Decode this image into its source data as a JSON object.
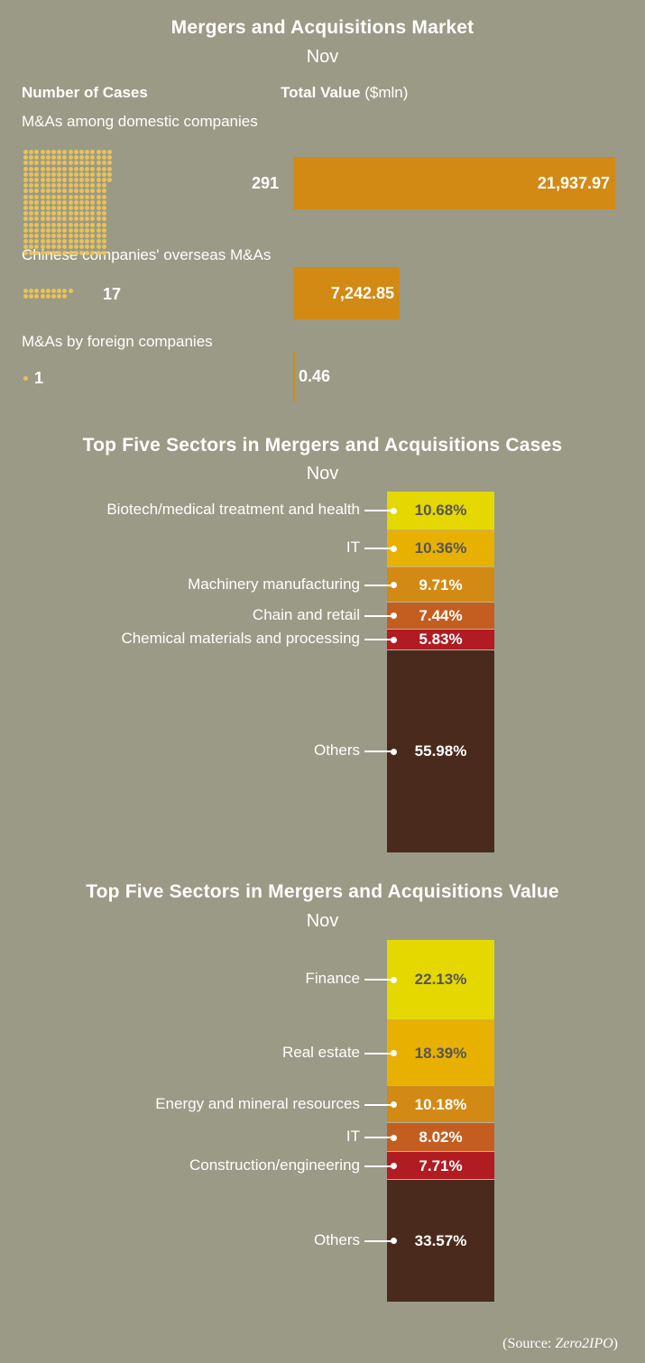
{
  "colors": {
    "background": "#9b9a86",
    "dot": "#e8c25a",
    "value_bar": "#d38a14",
    "seg_yellow": "#e5d700",
    "seg_gold": "#e8b000",
    "seg_orange": "#d38a14",
    "seg_dark_orange": "#c45e20",
    "seg_red": "#b01c22",
    "seg_brown": "#4a2a1c",
    "dark_text": "#555555",
    "light_text": "#ffffff"
  },
  "market": {
    "title": "Mergers and Acquisitions Market",
    "subtitle": "Nov",
    "col_cases": "Number of Cases",
    "col_value": "Total Value",
    "col_value_unit": "($mln)"
  },
  "sectors_cases": {
    "title": "Top Five Sectors in Mergers and Acquisitions Cases",
    "subtitle": "Nov"
  },
  "sectors_value": {
    "title": "Top Five Sectors in Mergers and Acquisitions Value",
    "subtitle": "Nov"
  },
  "source": {
    "prefix": "(Source: ",
    "name": "Zero2IPO",
    "suffix": ")"
  },
  "chart_data": [
    {
      "type": "bar",
      "title": "Mergers and Acquisitions Market",
      "subtitle": "Nov",
      "categories": [
        "M&As among domestic companies",
        "Chinese companies' overseas M&As",
        "M&As by foreign companies"
      ],
      "series": [
        {
          "name": "Number of Cases",
          "values": [
            291,
            17,
            1
          ],
          "labels": [
            "291",
            "17",
            "1"
          ]
        },
        {
          "name": "Total Value ($mln)",
          "values": [
            21937.97,
            7242.85,
            0.46
          ],
          "labels": [
            "21,937.97",
            "7,242.85",
            "0.46"
          ]
        }
      ]
    },
    {
      "type": "bar",
      "stacked": true,
      "title": "Top Five Sectors in Mergers and Acquisitions Cases",
      "subtitle": "Nov",
      "categories": [
        "Biotech/medical treatment and health",
        "IT",
        "Machinery manufacturing",
        "Chain and retail",
        "Chemical materials and processing",
        "Others"
      ],
      "values": [
        10.68,
        10.36,
        9.71,
        7.44,
        5.83,
        55.98
      ],
      "labels": [
        "10.68%",
        "10.36%",
        "9.71%",
        "7.44%",
        "5.83%",
        "55.98%"
      ],
      "colors": [
        "#e5d700",
        "#e8b000",
        "#d38a14",
        "#c45e20",
        "#b01c22",
        "#4a2a1c"
      ],
      "label_colors": [
        "#555555",
        "#555555",
        "#ffffff",
        "#ffffff",
        "#ffffff",
        "#ffffff"
      ]
    },
    {
      "type": "bar",
      "stacked": true,
      "title": "Top Five Sectors in Mergers and Acquisitions Value",
      "subtitle": "Nov",
      "categories": [
        "Finance",
        "Real estate",
        "Energy and mineral resources",
        "IT",
        "Construction/engineering",
        "Others"
      ],
      "values": [
        22.13,
        18.39,
        10.18,
        8.02,
        7.71,
        33.57
      ],
      "labels": [
        "22.13%",
        "18.39%",
        "10.18%",
        "8.02%",
        "7.71%",
        "33.57%"
      ],
      "colors": [
        "#e5d700",
        "#e8b000",
        "#d38a14",
        "#c45e20",
        "#b01c22",
        "#4a2a1c"
      ],
      "label_colors": [
        "#555555",
        "#555555",
        "#ffffff",
        "#ffffff",
        "#ffffff",
        "#ffffff"
      ]
    }
  ]
}
